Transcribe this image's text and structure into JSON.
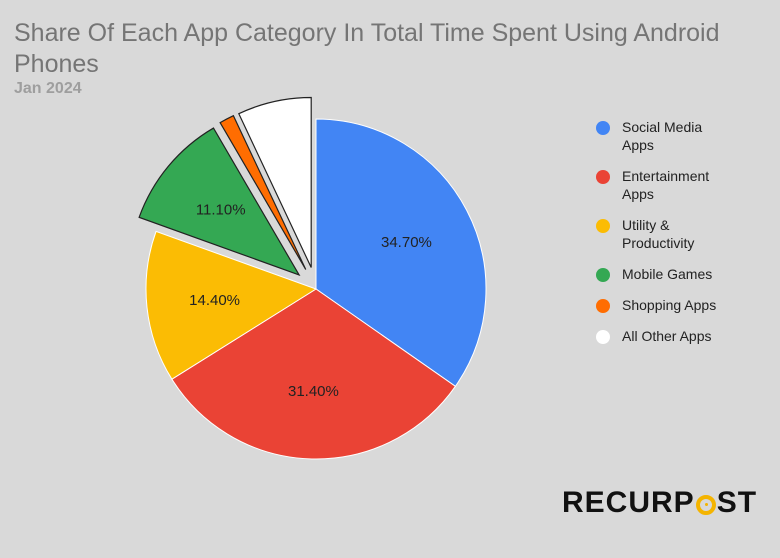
{
  "title": "Share Of Each App Category In Total Time Spent Using Android Phones",
  "subtitle": "Jan 2024",
  "logo": {
    "before": "RECURP",
    "after": "ST"
  },
  "chart_data": {
    "type": "pie",
    "title": "Share Of Each App Category In Total Time Spent Using Android Phones",
    "subtitle": "Jan 2024",
    "legend_position": "right",
    "slices": [
      {
        "label": "Social Media Apps",
        "value": 34.7,
        "display": "34.70%",
        "color": "#4285f4",
        "exploded": false
      },
      {
        "label": "Entertainment Apps",
        "value": 31.4,
        "display": "31.40%",
        "color": "#ea4335",
        "exploded": false
      },
      {
        "label": "Utility & Productivity",
        "value": 14.4,
        "display": "14.40%",
        "color": "#fbbc04",
        "exploded": false
      },
      {
        "label": "Mobile Games",
        "value": 11.1,
        "display": "11.10%",
        "color": "#34a853",
        "exploded": true
      },
      {
        "label": "Shopping Apps",
        "value": 1.4,
        "display": "",
        "color": "#ff6d01",
        "exploded": true
      },
      {
        "label": "All Other Apps",
        "value": 7.0,
        "display": "",
        "color": "#ffffff",
        "exploded": true
      }
    ]
  }
}
